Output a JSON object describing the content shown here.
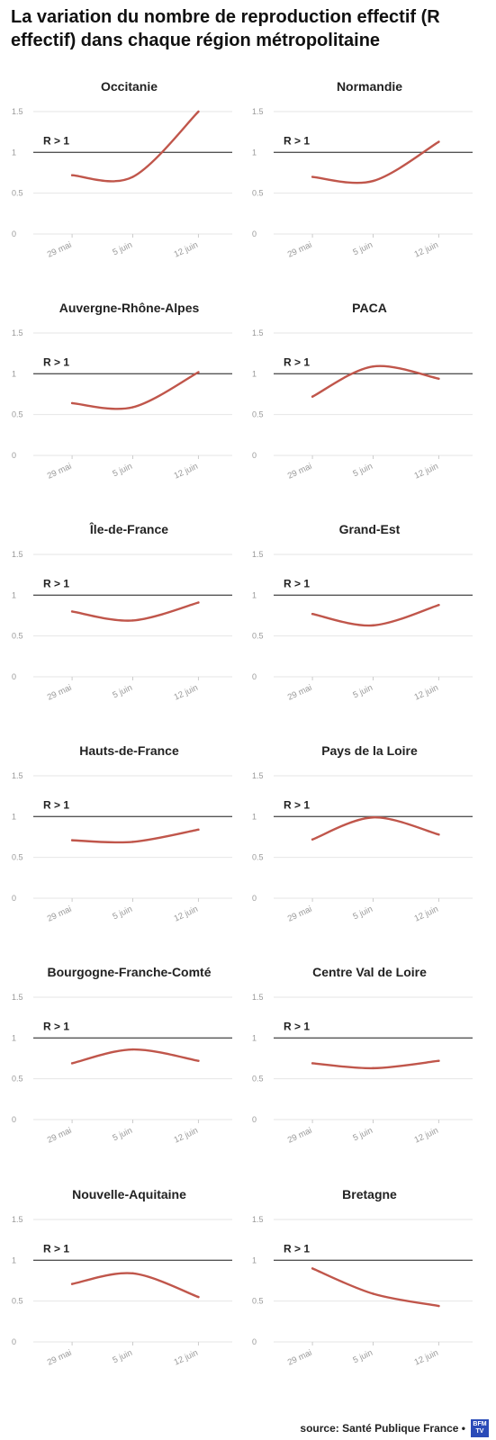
{
  "title": "La variation du nombre de reproduction effectif (R effectif) dans chaque région métropolitaine",
  "footer": {
    "source": "source: Santé Publique France •",
    "logo_top": "BFM",
    "logo_bottom": "TV"
  },
  "colors": {
    "line": "#c0564b",
    "threshold": "#555555",
    "grid": "#e6e6e6",
    "tick": "#999999"
  },
  "chart_data": [
    {
      "type": "line",
      "title": "Occitanie",
      "x": [
        "29 mai",
        "5 juin",
        "12 juin"
      ],
      "y": [
        0.72,
        0.7,
        1.5
      ],
      "yticks": [
        "0",
        "0.5",
        "1",
        "1.5"
      ],
      "ylim": [
        0,
        1.5
      ],
      "threshold": {
        "value": 1,
        "label": "R > 1"
      }
    },
    {
      "type": "line",
      "title": "Normandie",
      "x": [
        "29 mai",
        "5 juin",
        "12 juin"
      ],
      "y": [
        0.7,
        0.65,
        1.13
      ],
      "yticks": [
        "0",
        "0.5",
        "1",
        "1.5"
      ],
      "ylim": [
        0,
        1.5
      ],
      "threshold": {
        "value": 1,
        "label": "R > 1"
      }
    },
    {
      "type": "line",
      "title": "Auvergne-Rhône-Alpes",
      "x": [
        "29 mai",
        "5 juin",
        "12 juin"
      ],
      "y": [
        0.64,
        0.59,
        1.02
      ],
      "yticks": [
        "0",
        "0.5",
        "1",
        "1.5"
      ],
      "ylim": [
        0,
        1.5
      ],
      "threshold": {
        "value": 1,
        "label": "R > 1"
      }
    },
    {
      "type": "line",
      "title": "PACA",
      "x": [
        "29 mai",
        "5 juin",
        "12 juin"
      ],
      "y": [
        0.72,
        1.09,
        0.94
      ],
      "yticks": [
        "0",
        "0.5",
        "1",
        "1.5"
      ],
      "ylim": [
        0,
        1.5
      ],
      "threshold": {
        "value": 1,
        "label": "R > 1"
      }
    },
    {
      "type": "line",
      "title": "Île-de-France",
      "x": [
        "29 mai",
        "5 juin",
        "12 juin"
      ],
      "y": [
        0.8,
        0.69,
        0.91
      ],
      "yticks": [
        "0",
        "0.5",
        "1",
        "1.5"
      ],
      "ylim": [
        0,
        1.5
      ],
      "threshold": {
        "value": 1,
        "label": "R > 1"
      }
    },
    {
      "type": "line",
      "title": "Grand-Est",
      "x": [
        "29 mai",
        "5 juin",
        "12 juin"
      ],
      "y": [
        0.77,
        0.63,
        0.88
      ],
      "yticks": [
        "0",
        "0.5",
        "1",
        "1.5"
      ],
      "ylim": [
        0,
        1.5
      ],
      "threshold": {
        "value": 1,
        "label": "R > 1"
      }
    },
    {
      "type": "line",
      "title": "Hauts-de-France",
      "x": [
        "29 mai",
        "5 juin",
        "12 juin"
      ],
      "y": [
        0.71,
        0.69,
        0.84
      ],
      "yticks": [
        "0",
        "0.5",
        "1",
        "1.5"
      ],
      "ylim": [
        0,
        1.5
      ],
      "threshold": {
        "value": 1,
        "label": "R > 1"
      }
    },
    {
      "type": "line",
      "title": "Pays de la Loire",
      "x": [
        "29 mai",
        "5 juin",
        "12 juin"
      ],
      "y": [
        0.72,
        0.99,
        0.78
      ],
      "yticks": [
        "0",
        "0.5",
        "1",
        "1.5"
      ],
      "ylim": [
        0,
        1.5
      ],
      "threshold": {
        "value": 1,
        "label": "R > 1"
      }
    },
    {
      "type": "line",
      "title": "Bourgogne-Franche-Comté",
      "x": [
        "29 mai",
        "5 juin",
        "12 juin"
      ],
      "y": [
        0.69,
        0.86,
        0.72
      ],
      "yticks": [
        "0",
        "0.5",
        "1",
        "1.5"
      ],
      "ylim": [
        0,
        1.5
      ],
      "threshold": {
        "value": 1,
        "label": "R > 1"
      }
    },
    {
      "type": "line",
      "title": "Centre Val de Loire",
      "x": [
        "29 mai",
        "5 juin",
        "12 juin"
      ],
      "y": [
        0.69,
        0.63,
        0.72
      ],
      "yticks": [
        "0",
        "0.5",
        "1",
        "1.5"
      ],
      "ylim": [
        0,
        1.5
      ],
      "threshold": {
        "value": 1,
        "label": "R > 1"
      }
    },
    {
      "type": "line",
      "title": "Nouvelle-Aquitaine",
      "x": [
        "29 mai",
        "5 juin",
        "12 juin"
      ],
      "y": [
        0.71,
        0.84,
        0.55
      ],
      "yticks": [
        "0",
        "0.5",
        "1",
        "1.5"
      ],
      "ylim": [
        0,
        1.5
      ],
      "threshold": {
        "value": 1,
        "label": "R > 1"
      }
    },
    {
      "type": "line",
      "title": "Bretagne",
      "x": [
        "29 mai",
        "5 juin",
        "12 juin"
      ],
      "y": [
        0.9,
        0.59,
        0.44
      ],
      "yticks": [
        "0",
        "0.5",
        "1",
        "1.5"
      ],
      "ylim": [
        0,
        1.5
      ],
      "threshold": {
        "value": 1,
        "label": "R > 1"
      }
    }
  ]
}
